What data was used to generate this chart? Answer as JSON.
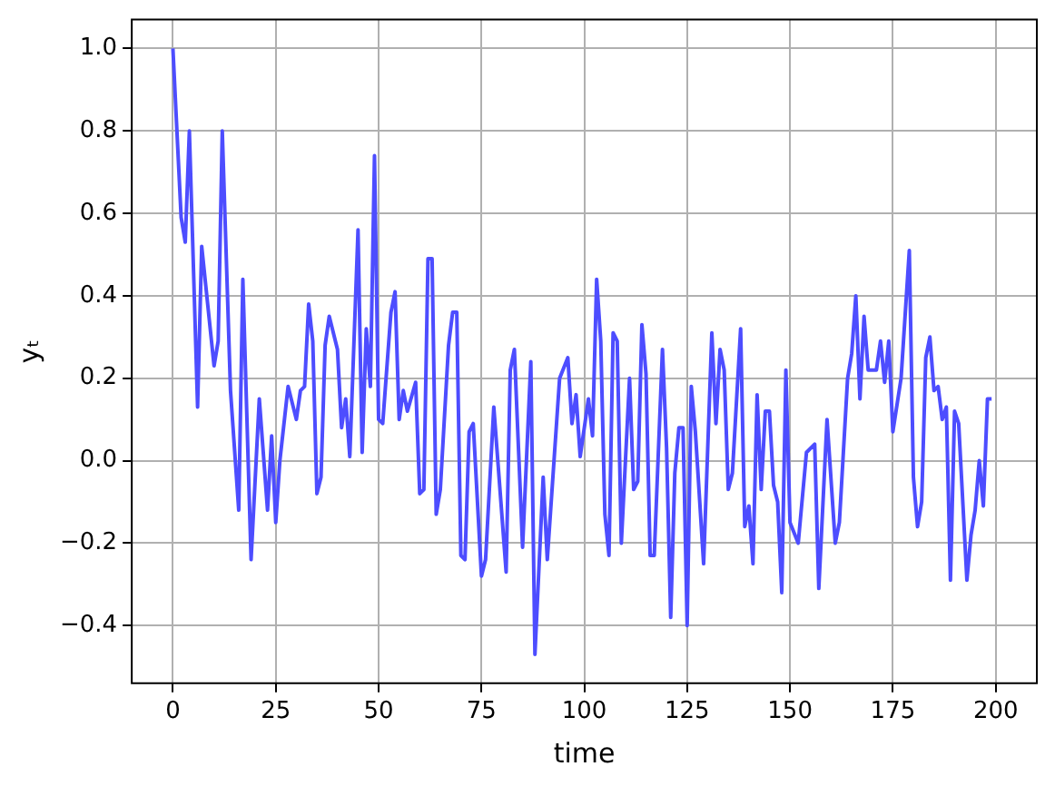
{
  "chart_data": {
    "type": "line",
    "xlabel": "time",
    "ylabel": "yₜ",
    "grid": true,
    "legend": false,
    "marker": "none",
    "line_style": "solid",
    "x": [
      0,
      2,
      3,
      4,
      6,
      7,
      10,
      11,
      12,
      14,
      16,
      17,
      19,
      21,
      23,
      24,
      25,
      26,
      28,
      30,
      31,
      32,
      33,
      34,
      35,
      36,
      37,
      38,
      40,
      41,
      42,
      43,
      45,
      46,
      47,
      48,
      49,
      50,
      51,
      53,
      54,
      55,
      56,
      57,
      59,
      60,
      61,
      62,
      63,
      64,
      65,
      67,
      68,
      69,
      70,
      71,
      72,
      73,
      75,
      76,
      78,
      81,
      82,
      83,
      85,
      87,
      88,
      90,
      91,
      94,
      96,
      97,
      98,
      99,
      101,
      102,
      103,
      104,
      105,
      106,
      107,
      108,
      109,
      111,
      112,
      113,
      114,
      115,
      116,
      117,
      119,
      120,
      121,
      122,
      123,
      124,
      125,
      126,
      127,
      129,
      131,
      132,
      133,
      134,
      135,
      136,
      138,
      139,
      140,
      141,
      142,
      143,
      144,
      145,
      146,
      147,
      148,
      149,
      150,
      152,
      154,
      156,
      157,
      159,
      161,
      162,
      164,
      165,
      166,
      167,
      168,
      169,
      171,
      172,
      173,
      174,
      175,
      177,
      179,
      180,
      181,
      182,
      183,
      184,
      185,
      186,
      187,
      188,
      189,
      190,
      191,
      193,
      194,
      195,
      196,
      197,
      198,
      199
    ],
    "series": [
      {
        "color": "#4d4dff",
        "values": [
          1.0,
          0.59,
          0.53,
          0.8,
          0.13,
          0.52,
          0.23,
          0.29,
          0.8,
          0.17,
          -0.12,
          0.44,
          -0.24,
          0.15,
          -0.12,
          0.06,
          -0.15,
          0.0,
          0.18,
          0.1,
          0.17,
          0.18,
          0.38,
          0.29,
          -0.08,
          -0.04,
          0.28,
          0.35,
          0.27,
          0.08,
          0.15,
          0.01,
          0.56,
          0.02,
          0.32,
          0.18,
          0.74,
          0.1,
          0.09,
          0.36,
          0.41,
          0.1,
          0.17,
          0.12,
          0.19,
          -0.08,
          -0.07,
          0.49,
          0.49,
          -0.13,
          -0.07,
          0.28,
          0.36,
          0.36,
          -0.23,
          -0.24,
          0.07,
          0.09,
          -0.28,
          -0.24,
          0.13,
          -0.27,
          0.22,
          0.27,
          -0.21,
          0.24,
          -0.47,
          -0.04,
          -0.24,
          0.2,
          0.25,
          0.09,
          0.16,
          0.01,
          0.15,
          0.06,
          0.44,
          0.29,
          -0.13,
          -0.23,
          0.31,
          0.29,
          -0.2,
          0.2,
          -0.07,
          -0.05,
          0.33,
          0.21,
          -0.23,
          -0.23,
          0.27,
          0.03,
          -0.38,
          -0.03,
          0.08,
          0.08,
          -0.4,
          0.18,
          0.07,
          -0.25,
          0.31,
          0.09,
          0.27,
          0.22,
          -0.07,
          -0.03,
          0.32,
          -0.16,
          -0.11,
          -0.25,
          0.16,
          -0.07,
          0.12,
          0.12,
          -0.06,
          -0.1,
          -0.32,
          0.22,
          -0.15,
          -0.2,
          0.02,
          0.04,
          -0.31,
          0.1,
          -0.2,
          -0.15,
          0.2,
          0.26,
          0.4,
          0.15,
          0.35,
          0.22,
          0.22,
          0.29,
          0.19,
          0.29,
          0.07,
          0.2,
          0.51,
          -0.04,
          -0.16,
          -0.1,
          0.25,
          0.3,
          0.17,
          0.18,
          0.1,
          0.13,
          -0.29,
          0.12,
          0.09,
          -0.29,
          -0.18,
          -0.12,
          0.0,
          -0.11,
          0.15,
          0.15
        ]
      }
    ],
    "xlim": [
      -10,
      210
    ],
    "xticks": [
      0,
      25,
      50,
      75,
      100,
      125,
      150,
      175,
      200
    ],
    "ylim": [
      -0.54,
      1.07
    ],
    "yticks": [
      {
        "value": -0.4,
        "label": "−0.4"
      },
      {
        "value": -0.2,
        "label": "−0.2"
      },
      {
        "value": 0,
        "label": "0.0"
      },
      {
        "value": 0.2,
        "label": "0.2"
      },
      {
        "value": 0.4,
        "label": "0.4"
      },
      {
        "value": 0.6,
        "label": "0.6"
      },
      {
        "value": 0.8,
        "label": "0.8"
      },
      {
        "value": 1.0,
        "label": "1.0"
      }
    ]
  }
}
